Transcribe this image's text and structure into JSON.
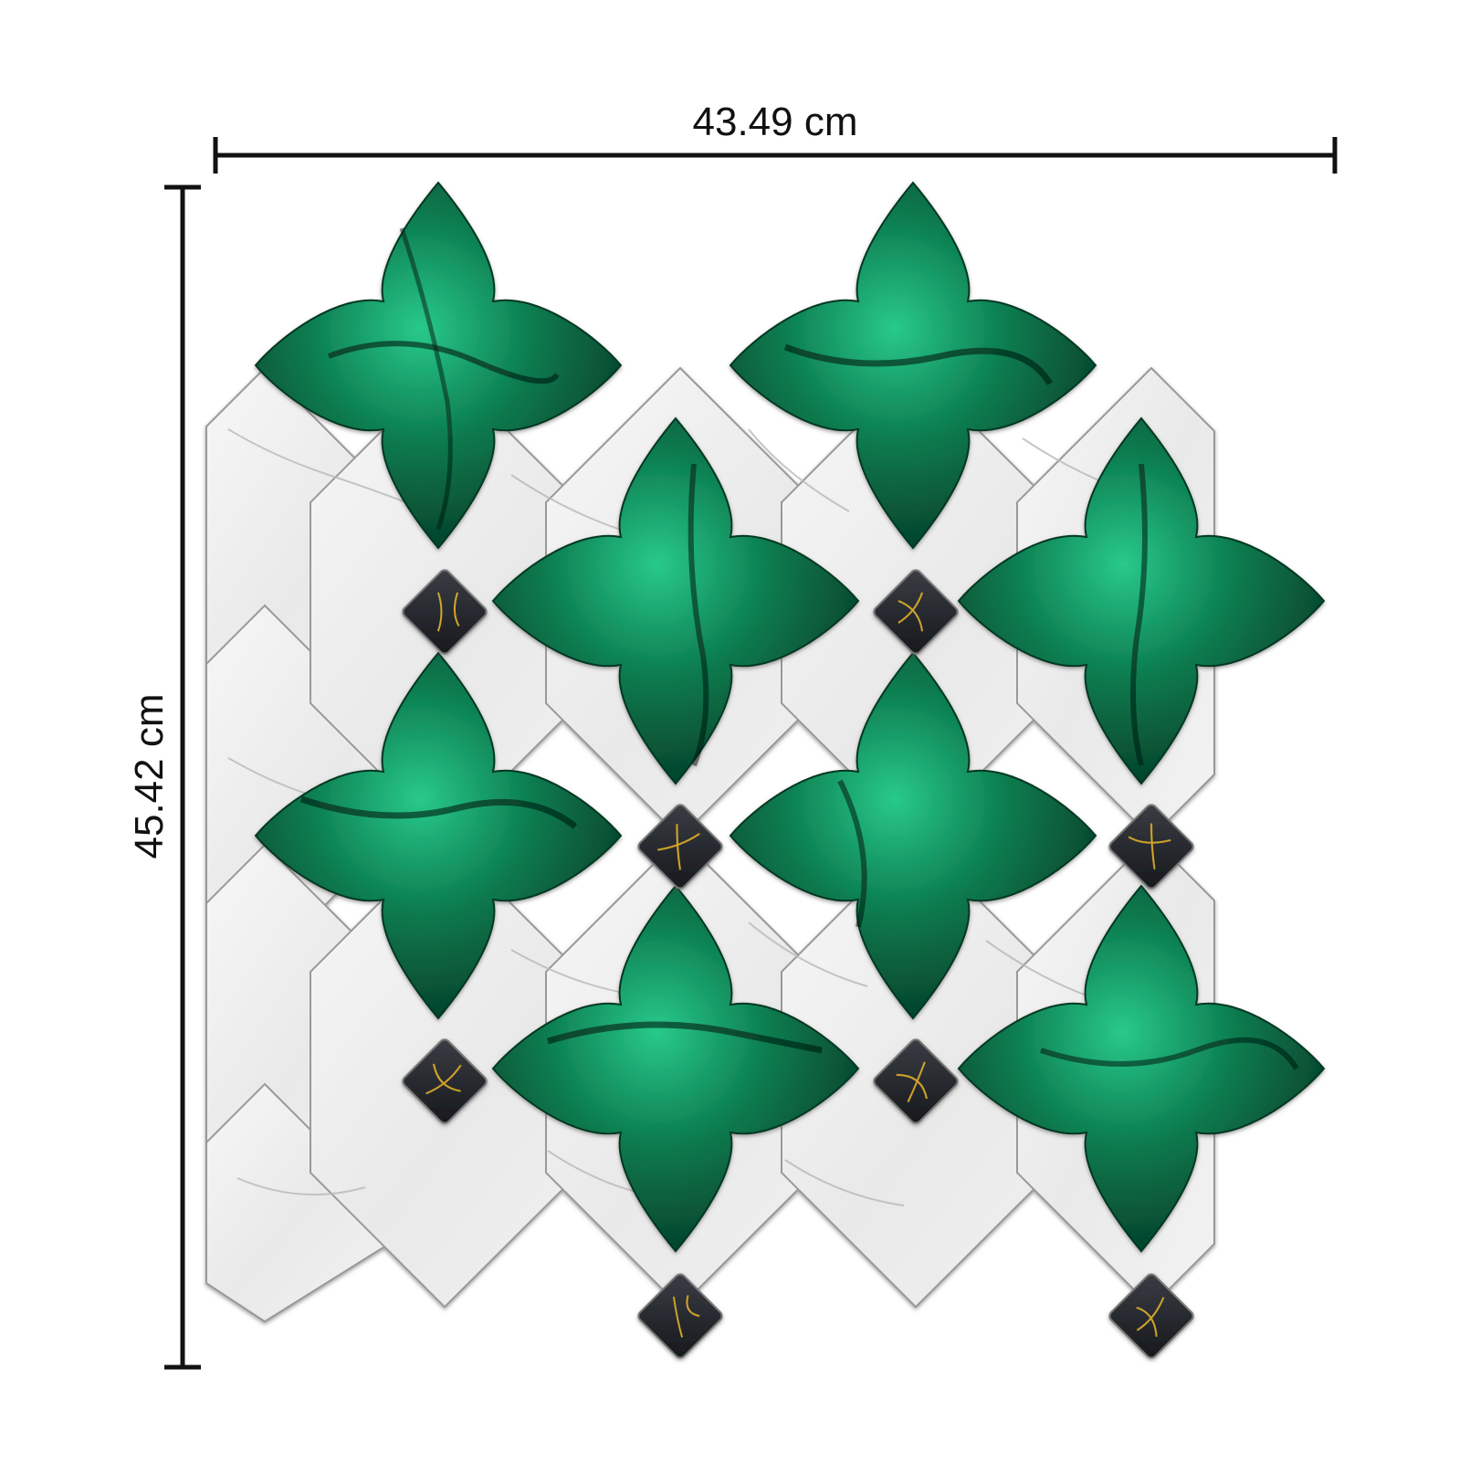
{
  "dimensions": {
    "width_label": "43.49 cm",
    "height_label": "45.42 cm"
  },
  "colors": {
    "background": "#ffffff",
    "dimension_line": "#111111",
    "emerald_dark": "#03301f",
    "emerald_mid": "#0b7a4e",
    "emerald_light": "#29c98a",
    "white_marble": "#eeeeee",
    "marble_vein": "#b8b8b8",
    "black_marble": "#1f2126",
    "gold_vein": "#d4a62a"
  },
  "tile": {
    "emerald_quatrefoil_count": 8,
    "black_dot_count": 8,
    "material_main": "green-marble",
    "material_border": "white-marble",
    "material_accent": "black-gold-marble"
  }
}
